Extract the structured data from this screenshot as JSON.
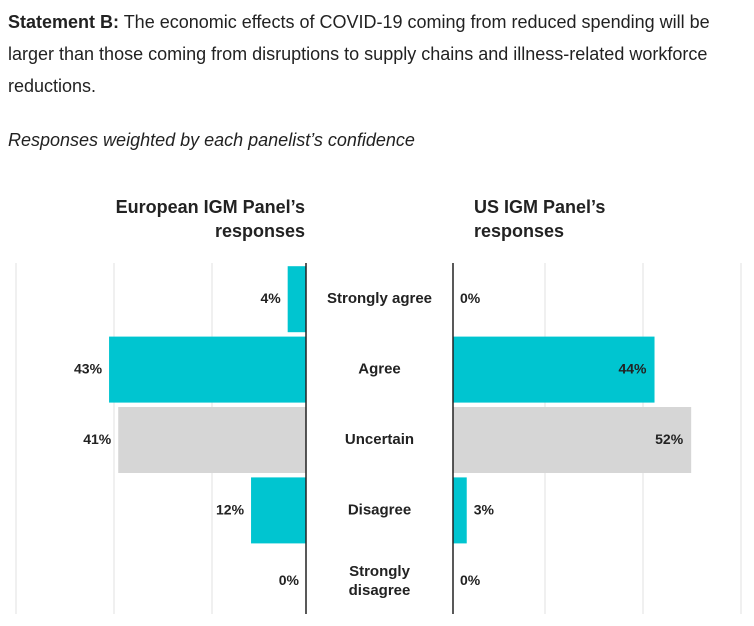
{
  "statement": {
    "label": "Statement B:",
    "text": " The economic effects of COVID-19 coming from reduced spending will be larger than those coming from disruptions to supply chains and illness-related workforce reductions."
  },
  "subtitle": "Responses weighted by each panelist’s confidence",
  "colors": {
    "agree": "#00c5d0",
    "uncertain": "#d6d6d6",
    "grid": "#e2e2e2",
    "axis": "#222222"
  },
  "chart_data": [
    {
      "type": "bar",
      "title": "European IGM Panel’s responses",
      "title_lines": [
        "European IGM Panel’s",
        "responses"
      ],
      "orientation": "horizontal",
      "direction": "left",
      "categories": [
        "Strongly agree",
        "Agree",
        "Uncertain",
        "Disagree",
        "Strongly disagree"
      ],
      "values": [
        4,
        43,
        41,
        12,
        0
      ],
      "labels": [
        "4%",
        "43%",
        "41%",
        "12%",
        "0%"
      ],
      "colors": [
        "#00c5d0",
        "#00c5d0",
        "#d6d6d6",
        "#00c5d0",
        "#00c5d0"
      ],
      "xlim": [
        0,
        60
      ],
      "grid": true
    },
    {
      "type": "bar",
      "title": "US IGM Panel’s responses",
      "title_lines": [
        "US IGM Panel’s",
        "responses"
      ],
      "orientation": "horizontal",
      "direction": "right",
      "categories": [
        "Strongly agree",
        "Agree",
        "Uncertain",
        "Disagree",
        "Strongly disagree"
      ],
      "values": [
        0,
        44,
        52,
        3,
        0
      ],
      "labels": [
        "0%",
        "44%",
        "52%",
        "3%",
        "0%"
      ],
      "colors": [
        "#00c5d0",
        "#00c5d0",
        "#d6d6d6",
        "#00c5d0",
        "#00c5d0"
      ],
      "xlim": [
        0,
        60
      ],
      "grid": true
    }
  ],
  "category_labels": [
    [
      "Strongly agree"
    ],
    [
      "Agree"
    ],
    [
      "Uncertain"
    ],
    [
      "Disagree"
    ],
    [
      "Strongly",
      "disagree"
    ]
  ]
}
